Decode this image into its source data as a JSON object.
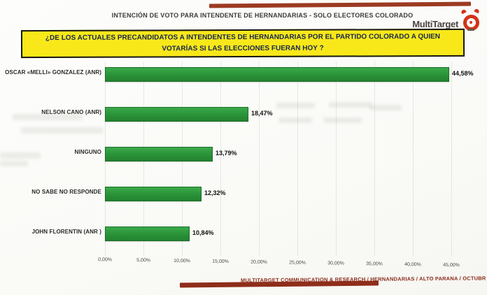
{
  "header": {
    "top_title": "INTENCIÓN DE VOTO PARA INTENDENTE DE HERNANDARIAS - SOLO ELECTORES COLORADO",
    "brand_name": "MultiTarget"
  },
  "question_box": {
    "line1": "¿DE LOS ACTUALES PRECANDIDATOS A INTENDENTES DE HERNANDARIAS POR EL  PARTIDO COLORADO A QUIEN",
    "line2": "VOTARÍAS SI LAS ELECCIONES FUERAN HOY ?"
  },
  "chart_data": {
    "type": "bar",
    "orientation": "horizontal",
    "title": "",
    "categories": [
      "OSCAR «MELLI» GONZALEZ (ANR)",
      "NELSON CANO (ANR)",
      "NINGUNO",
      "NO SABE NO RESPONDE",
      "JOHN FLORENTIN  (ANR )"
    ],
    "values": [
      44.58,
      18.47,
      13.79,
      12.32,
      10.84
    ],
    "value_labels": [
      "44,58%",
      "18,47%",
      "13,79%",
      "12,32%",
      "10,84%"
    ],
    "x_ticks": [
      "0,00%",
      "5,00%",
      "10,00%",
      "15,00%",
      "20,00%",
      "25,00%",
      "30,00%",
      "35,00%",
      "40,00%",
      "45,00%"
    ],
    "xlim": [
      0,
      45
    ],
    "grid": true,
    "legend": false,
    "bar_color": "#2f9e3e"
  },
  "footer": {
    "text": "MULTITARGET COMMUNICATION & RESEARCH / HERNANDARIAS  /  ALTO PARANA / OCTUBR"
  },
  "colors": {
    "bar_green": "#2f9e3e",
    "question_yellow": "#f8e81a",
    "accent_dark_red": "#93311c",
    "footer_text_red": "#8a2a18"
  }
}
